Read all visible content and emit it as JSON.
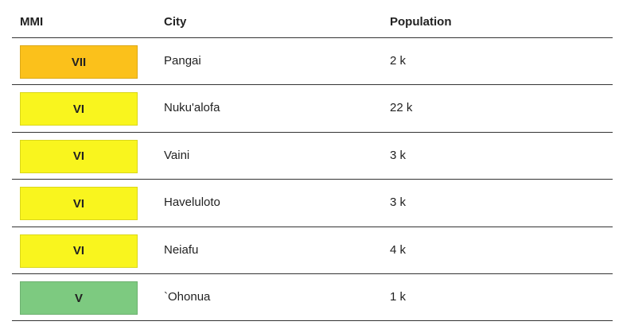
{
  "table": {
    "headers": [
      "MMI",
      "City",
      "Population"
    ],
    "rows": [
      {
        "mmi": "VII",
        "city": "Pangai",
        "population": "2 k",
        "color": "#fbc11b"
      },
      {
        "mmi": "VI",
        "city": "Nuku'alofa",
        "population": "22 k",
        "color": "#f9f51e"
      },
      {
        "mmi": "VI",
        "city": "Vaini",
        "population": "3 k",
        "color": "#f9f51e"
      },
      {
        "mmi": "VI",
        "city": "Haveluloto",
        "population": "3 k",
        "color": "#f9f51e"
      },
      {
        "mmi": "VI",
        "city": "Neiafu",
        "population": "4 k",
        "color": "#f9f51e"
      },
      {
        "mmi": "V",
        "city": "`Ohonua",
        "population": "1 k",
        "color": "#7dca80"
      }
    ]
  }
}
